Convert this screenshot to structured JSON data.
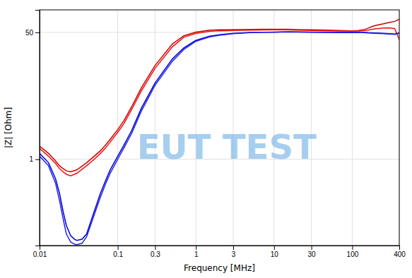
{
  "chart_data": {
    "type": "line",
    "xlabel": "Frequency [MHz]",
    "ylabel": "|Z| [Ohm]",
    "log": true,
    "grid": true,
    "xlim": [
      0.01,
      400
    ],
    "ylim": [
      0.07,
      100
    ],
    "xticks": [
      0.01,
      0.1,
      0.3,
      1,
      3,
      10,
      30,
      100,
      400
    ],
    "yticks": [
      1,
      50
    ],
    "annotations": [
      {
        "text": "EUT TEST",
        "color": "#6AAFE6"
      }
    ],
    "series": [
      {
        "color": "#cc0000",
        "x": [
          0.01,
          0.013,
          0.016,
          0.018,
          0.02,
          0.022,
          0.025,
          0.03,
          0.04,
          0.05,
          0.06,
          0.07,
          0.08,
          0.1,
          0.12,
          0.15,
          0.2,
          0.3,
          0.5,
          0.7,
          1.0,
          1.5,
          2.0,
          3.0,
          5.0,
          7.0,
          10.0,
          15.0,
          20.0,
          30.0,
          50.0,
          70.0,
          100.0,
          120.0,
          140.0,
          160.0,
          180.0,
          200.0,
          250.0,
          300.0,
          350.0,
          400.0
        ],
        "values": [
          1.5,
          1.2,
          0.95,
          0.82,
          0.75,
          0.7,
          0.68,
          0.72,
          0.9,
          1.1,
          1.3,
          1.55,
          1.85,
          2.5,
          3.3,
          5.0,
          9.0,
          18.0,
          35.0,
          45.0,
          50.5,
          53.5,
          54.0,
          54.5,
          54.8,
          55.0,
          55.0,
          55.0,
          54.5,
          54.0,
          53.5,
          53.0,
          52.5,
          53.0,
          54.0,
          57.0,
          60.0,
          62.0,
          65.0,
          68.0,
          70.0,
          75.0
        ]
      },
      {
        "color": "#ee1111",
        "x": [
          0.01,
          0.013,
          0.016,
          0.018,
          0.02,
          0.022,
          0.025,
          0.03,
          0.04,
          0.05,
          0.06,
          0.07,
          0.08,
          0.1,
          0.12,
          0.15,
          0.2,
          0.3,
          0.5,
          0.7,
          1.0,
          1.5,
          2.0,
          3.0,
          5.0,
          7.0,
          10.0,
          15.0,
          20.0,
          30.0,
          50.0,
          70.0,
          100.0,
          120.0,
          140.0,
          160.0,
          180.0,
          200.0,
          250.0,
          300.0,
          350.0,
          400.0
        ],
        "values": [
          1.4,
          1.1,
          0.88,
          0.75,
          0.68,
          0.63,
          0.6,
          0.65,
          0.82,
          1.0,
          1.2,
          1.42,
          1.7,
          2.3,
          3.0,
          4.6,
          8.2,
          16.5,
          32.0,
          43.0,
          48.5,
          51.5,
          52.5,
          53.0,
          53.5,
          53.8,
          54.0,
          54.0,
          53.5,
          53.0,
          52.5,
          52.0,
          52.0,
          52.0,
          52.5,
          53.5,
          55.0,
          56.0,
          57.0,
          57.5,
          56.0,
          40.0
        ]
      },
      {
        "color": "#0000cc",
        "x": [
          0.01,
          0.013,
          0.016,
          0.018,
          0.02,
          0.022,
          0.025,
          0.028,
          0.03,
          0.035,
          0.04,
          0.05,
          0.06,
          0.07,
          0.08,
          0.1,
          0.12,
          0.15,
          0.2,
          0.3,
          0.5,
          0.7,
          1.0,
          1.5,
          2.0,
          3.0,
          5.0,
          7.0,
          10.0,
          15.0,
          20.0,
          30.0,
          50.0,
          70.0,
          100.0,
          120.0,
          140.0,
          160.0,
          180.0,
          200.0,
          250.0,
          300.0,
          350.0,
          400.0
        ],
        "values": [
          1.2,
          0.9,
          0.55,
          0.35,
          0.2,
          0.13,
          0.095,
          0.085,
          0.082,
          0.085,
          0.1,
          0.2,
          0.35,
          0.52,
          0.72,
          1.1,
          1.55,
          2.4,
          4.8,
          10.5,
          22.0,
          31.0,
          39.0,
          44.5,
          46.5,
          48.5,
          49.8,
          50.2,
          50.5,
          51.0,
          50.8,
          50.5,
          50.2,
          50.0,
          50.0,
          50.2,
          50.0,
          49.5,
          49.2,
          49.0,
          48.5,
          48.0,
          47.5,
          49.0
        ]
      },
      {
        "color": "#2222ee",
        "x": [
          0.01,
          0.013,
          0.016,
          0.018,
          0.02,
          0.022,
          0.025,
          0.028,
          0.03,
          0.035,
          0.04,
          0.05,
          0.06,
          0.07,
          0.08,
          0.1,
          0.12,
          0.15,
          0.2,
          0.3,
          0.5,
          0.7,
          1.0,
          1.5,
          2.0,
          3.0,
          5.0,
          7.0,
          10.0,
          15.0,
          20.0,
          30.0,
          50.0,
          70.0,
          100.0,
          120.0,
          140.0,
          160.0,
          180.0,
          200.0,
          250.0,
          300.0,
          350.0,
          400.0
        ],
        "values": [
          1.1,
          0.82,
          0.48,
          0.28,
          0.16,
          0.1,
          0.078,
          0.073,
          0.072,
          0.075,
          0.092,
          0.18,
          0.31,
          0.47,
          0.65,
          1.0,
          1.42,
          2.2,
          4.4,
          9.8,
          20.5,
          29.5,
          38.0,
          43.5,
          45.8,
          48.0,
          49.5,
          50.0,
          50.2,
          50.8,
          50.5,
          50.2,
          49.8,
          49.5,
          49.5,
          49.8,
          49.5,
          49.0,
          48.8,
          48.5,
          48.0,
          47.5,
          47.0,
          48.5
        ]
      }
    ]
  }
}
